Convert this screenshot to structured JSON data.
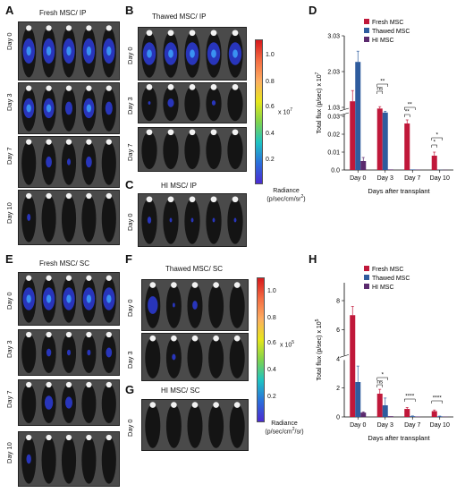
{
  "panels": {
    "A": {
      "letter": "A",
      "title": "Fresh MSC/ IP",
      "days": [
        "Day 0",
        "Day 3",
        "Day 7",
        "Day 10"
      ],
      "signal": [
        [
          1,
          1,
          1,
          1,
          1
        ],
        [
          0.9,
          0.9,
          0.6,
          0.9,
          0.6
        ],
        [
          0,
          0.5,
          0.3,
          0.5,
          0
        ],
        [
          0.3,
          0,
          0,
          0,
          0
        ]
      ]
    },
    "B": {
      "letter": "B",
      "title": "Thawed MSC/ IP",
      "days": [
        "Day 0",
        "Day 3",
        "Day 7"
      ],
      "signal": [
        [
          1,
          1,
          1,
          1,
          1
        ],
        [
          0.2,
          0.5,
          0,
          0.3,
          0
        ],
        [
          0,
          0,
          0,
          0,
          0
        ]
      ]
    },
    "C": {
      "letter": "C",
      "title": "HI MSC/ IP",
      "days": [
        "Day 0"
      ],
      "signal": [
        [
          0.3,
          0.2,
          0.2,
          0.2,
          0.2
        ]
      ]
    },
    "E": {
      "letter": "E",
      "title": "Fresh MSC/ SC",
      "days": [
        "Day 0",
        "Day 3",
        "Day 7",
        "Day 10"
      ],
      "signal": [
        [
          1,
          1,
          1,
          1,
          1
        ],
        [
          0,
          0.4,
          0.3,
          0.3,
          0.5
        ],
        [
          0,
          0.7,
          0.6,
          0,
          0
        ],
        [
          0.4,
          0,
          0,
          0,
          0
        ]
      ]
    },
    "F": {
      "letter": "F",
      "title": "Thawed MSC/ SC",
      "days": [
        "Day 0",
        "Day 3"
      ],
      "signal": [
        [
          0.8,
          0.2,
          0.4,
          0,
          0
        ],
        [
          0,
          0.3,
          0,
          0,
          0
        ]
      ]
    },
    "G": {
      "letter": "G",
      "title": "HI MSC/ SC",
      "days": [
        "Day 0"
      ],
      "signal": [
        [
          0,
          0,
          0,
          0,
          0
        ]
      ]
    }
  },
  "colorbar_ip": {
    "ticks": [
      "1.0",
      "0.8",
      "0.6",
      "0.4",
      "0.2"
    ],
    "exponent": "x 10",
    "exp_power": "7",
    "label1": "Radiance",
    "label2": "(p/sec/cm/sr",
    "label2_sup": "2",
    "label2_end": ")"
  },
  "colorbar_sc": {
    "ticks": [
      "1.0",
      "0.8",
      "0.6",
      "0.4",
      "0.2"
    ],
    "exponent": "x 10",
    "exp_power": "5",
    "label1": "Radiance",
    "label2": "(p/sec/cm",
    "label2_sup": "2",
    "label2_end": "/sr)"
  },
  "chart_data": [
    {
      "panel": "D",
      "type": "bar",
      "categories": [
        "Day 0",
        "Day 3",
        "Day 7",
        "Day 10"
      ],
      "xlabel": "Days after transplant",
      "ylabel": "Total flux (p/sec) x 10",
      "ylabel_sup": "7",
      "yticks": [
        "0.0",
        "0.01",
        "0.02",
        "0.03",
        "1.03",
        "2.03",
        "3.03"
      ],
      "broken_axis": true,
      "series": [
        {
          "name": "Fresh MSC",
          "color": "#c0183a",
          "values": [
            1.2,
            0.9,
            0.026,
            0.008
          ],
          "err": [
            0.3,
            0.15,
            0.002,
            0.002
          ]
        },
        {
          "name": "Thawed MSC",
          "color": "#2f5c9e",
          "values": [
            2.3,
            0.45,
            0.0003,
            0.0001
          ],
          "err": [
            0.3,
            0.15,
            0,
            0
          ]
        },
        {
          "name": "HI MSC",
          "color": "#5b2a6e",
          "values": [
            0.005,
            0.0003,
            0.0002,
            0.0001
          ],
          "err": [
            0.002,
            0,
            0,
            0
          ]
        }
      ],
      "annotations": [
        "**",
        "ns",
        "**",
        "**",
        "*",
        "*"
      ]
    },
    {
      "panel": "H",
      "type": "bar",
      "categories": [
        "Day 0",
        "Day 3",
        "Day 7",
        "Day 10"
      ],
      "xlabel": "Days after transplant",
      "ylabel": "Total flux (p/sec) x 10",
      "ylabel_sup": "5",
      "yticks": [
        "0",
        "2",
        "4",
        "6",
        "8"
      ],
      "ylim": [
        0,
        8
      ],
      "series": [
        {
          "name": "Fresh MSC",
          "color": "#c0183a",
          "values": [
            7.0,
            1.6,
            0.55,
            0.4
          ],
          "err": [
            0.6,
            0.3,
            0.1,
            0.08
          ]
        },
        {
          "name": "Thawed MSC",
          "color": "#2f5c9e",
          "values": [
            2.4,
            0.8,
            0.05,
            0.04
          ],
          "err": [
            1.1,
            0.5,
            0.02,
            0.02
          ]
        },
        {
          "name": "HI MSC",
          "color": "#5b2a6e",
          "values": [
            0.3,
            0.05,
            0.03,
            0.02
          ],
          "err": [
            0.05,
            0,
            0,
            0
          ]
        }
      ],
      "annotations": [
        "*",
        "ns",
        "****",
        "****"
      ]
    }
  ]
}
